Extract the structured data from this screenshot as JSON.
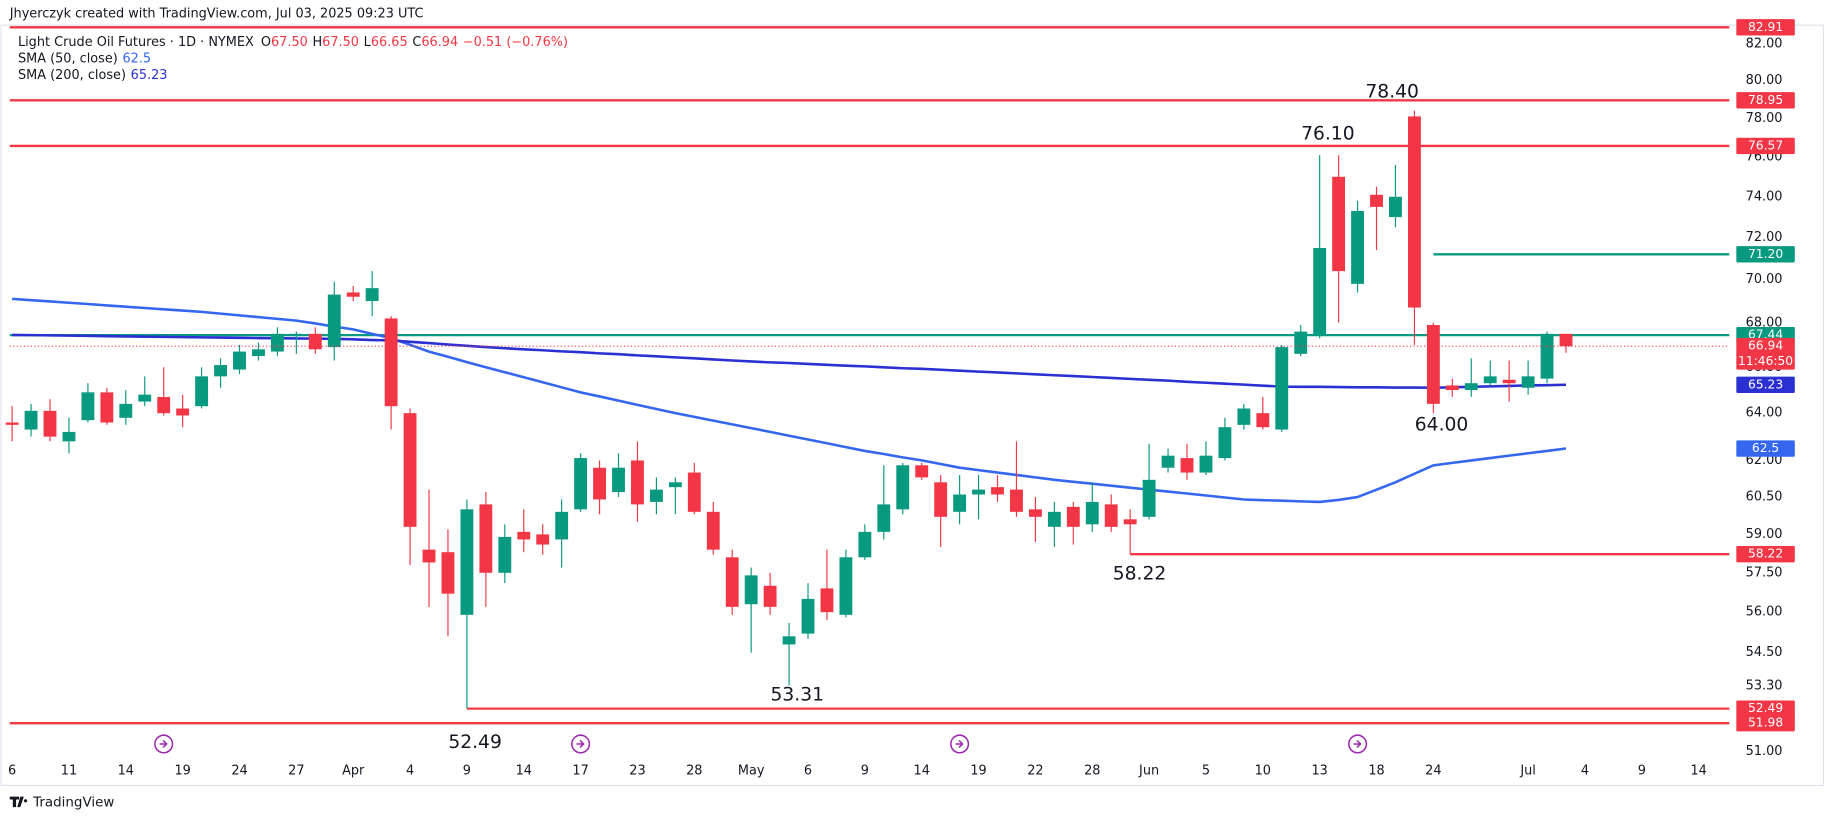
{
  "chart_data": {
    "type": "candlestick",
    "credit": "Jhyerczyk created with TradingView.com, Jul 03, 2025 09:23 UTC",
    "title": "Light Crude Oil Futures · 1D · NYMEX",
    "quote": [
      [
        "O",
        "67.50"
      ],
      [
        "H",
        "67.50"
      ],
      [
        "L",
        "66.65"
      ],
      [
        "C",
        "66.94"
      ]
    ],
    "change": "−0.51 (−0.76%)",
    "branding": "TradingView",
    "countdown": "11:46:50",
    "log_scale": true,
    "grid": false,
    "up_color": "#089981",
    "down_color": "#f23645",
    "ylim": [
      50.7,
      83.0
    ],
    "yticks": [
      {
        "value": 82,
        "label": "82.00"
      },
      {
        "value": 80,
        "label": "80.00"
      },
      {
        "value": 78,
        "label": "78.00"
      },
      {
        "value": 76,
        "label": "76.00"
      },
      {
        "value": 74,
        "label": "74.00"
      },
      {
        "value": 72,
        "label": "72.00"
      },
      {
        "value": 70,
        "label": "70.00"
      },
      {
        "value": 68,
        "label": "68.00"
      },
      {
        "value": 66,
        "label": "66.00"
      },
      {
        "value": 64,
        "label": "64.00"
      },
      {
        "value": 62,
        "label": "62.00"
      },
      {
        "value": 60.5,
        "label": "60.50"
      },
      {
        "value": 59,
        "label": "59.00"
      },
      {
        "value": 57.5,
        "label": "57.50"
      },
      {
        "value": 56,
        "label": "56.00"
      },
      {
        "value": 54.5,
        "label": "54.50"
      },
      {
        "value": 53.3,
        "label": "53.30"
      },
      {
        "value": 51,
        "label": "51.00"
      }
    ],
    "categories": [
      "6",
      null,
      null,
      "11",
      null,
      null,
      "14",
      null,
      null,
      "19",
      null,
      null,
      "24",
      null,
      null,
      "27",
      null,
      null,
      "Apr",
      null,
      null,
      "4",
      null,
      null,
      "9",
      null,
      null,
      "14",
      null,
      null,
      "17",
      null,
      null,
      "23",
      null,
      null,
      "28",
      null,
      null,
      "May",
      null,
      null,
      "6",
      null,
      null,
      "9",
      null,
      null,
      "14",
      null,
      null,
      "19",
      null,
      null,
      "22",
      null,
      null,
      "28",
      null,
      null,
      "Jun",
      null,
      null,
      "5",
      null,
      null,
      "10",
      null,
      null,
      "13",
      null,
      null,
      "18",
      null,
      null,
      "24",
      null,
      null,
      null,
      null,
      "Jul",
      null,
      null,
      "4",
      null,
      null,
      "9",
      null,
      null,
      "14"
    ],
    "open": [
      63.6,
      63.3,
      64.1,
      62.8,
      63.7,
      64.9,
      63.8,
      64.5,
      64.7,
      64.2,
      64.3,
      65.6,
      65.9,
      66.5,
      66.7,
      67.4,
      67.5,
      66.9,
      69.4,
      69.0,
      68.2,
      64.0,
      58.4,
      58.3,
      55.9,
      60.2,
      57.5,
      59.1,
      59.0,
      58.8,
      60.0,
      61.7,
      60.7,
      62.0,
      60.3,
      60.9,
      61.5,
      59.9,
      58.1,
      56.3,
      57.0,
      54.8,
      55.2,
      56.9,
      55.9,
      58.1,
      59.1,
      60.0,
      61.8,
      61.1,
      59.9,
      60.6,
      60.9,
      60.8,
      60.0,
      59.3,
      60.1,
      59.4,
      60.2,
      59.6,
      59.7,
      61.7,
      62.1,
      61.5,
      62.1,
      63.5,
      64.0,
      63.3,
      66.6,
      67.4,
      75.0,
      69.8,
      74.1,
      73.0,
      78.1,
      67.9,
      65.2,
      65.0,
      65.3,
      65.45,
      65.1,
      65.5,
      67.5,
      null,
      null,
      null,
      null,
      null,
      null,
      null
    ],
    "high": [
      64.3,
      64.4,
      64.6,
      63.8,
      65.3,
      65.1,
      65.0,
      65.6,
      66.0,
      64.8,
      66.0,
      66.4,
      67.0,
      67.1,
      67.8,
      67.6,
      67.8,
      69.9,
      69.7,
      70.4,
      68.3,
      64.2,
      60.8,
      59.2,
      60.4,
      60.7,
      59.4,
      60.0,
      59.4,
      60.4,
      62.3,
      62.0,
      62.3,
      62.8,
      61.3,
      61.3,
      61.9,
      60.3,
      58.4,
      57.7,
      57.5,
      55.6,
      57.1,
      58.4,
      58.4,
      59.4,
      61.8,
      61.9,
      61.9,
      61.4,
      61.4,
      61.4,
      61.4,
      62.8,
      60.5,
      60.3,
      60.3,
      61.1,
      60.6,
      60.0,
      62.7,
      62.5,
      62.7,
      62.8,
      63.8,
      64.4,
      64.7,
      67.0,
      67.9,
      76.1,
      76.1,
      73.8,
      74.5,
      75.6,
      78.4,
      68.0,
      65.5,
      66.4,
      66.3,
      66.3,
      66.3,
      67.6,
      67.5,
      null,
      null,
      null,
      null,
      null,
      null,
      null
    ],
    "low": [
      62.8,
      63.0,
      62.8,
      62.3,
      63.6,
      63.5,
      63.5,
      64.3,
      63.9,
      63.4,
      64.2,
      65.1,
      65.7,
      66.3,
      66.5,
      66.6,
      66.6,
      66.3,
      69.0,
      68.3,
      63.3,
      57.8,
      56.2,
      55.1,
      52.49,
      56.2,
      57.1,
      58.3,
      58.2,
      57.7,
      59.9,
      59.8,
      60.5,
      59.5,
      59.8,
      59.8,
      59.8,
      58.2,
      55.9,
      54.5,
      55.9,
      53.31,
      55.0,
      55.7,
      55.8,
      58.0,
      58.8,
      59.8,
      61.2,
      58.5,
      59.4,
      59.6,
      60.3,
      59.7,
      58.7,
      58.5,
      58.6,
      59.1,
      59.1,
      58.22,
      59.6,
      61.5,
      61.2,
      61.4,
      62.0,
      63.3,
      63.3,
      63.2,
      66.5,
      67.3,
      68.0,
      69.4,
      71.4,
      72.5,
      67.0,
      64.0,
      64.7,
      64.7,
      65.2,
      64.5,
      64.8,
      65.3,
      66.65,
      null,
      null,
      null,
      null,
      null,
      null,
      null
    ],
    "close": [
      63.5,
      64.1,
      63.0,
      63.2,
      64.9,
      63.6,
      64.4,
      64.8,
      64.0,
      63.9,
      65.6,
      66.1,
      66.7,
      66.8,
      67.5,
      67.5,
      66.8,
      69.3,
      69.2,
      69.6,
      64.3,
      59.3,
      57.9,
      56.7,
      60.0,
      57.5,
      58.9,
      58.8,
      58.6,
      59.9,
      62.1,
      60.4,
      61.7,
      60.2,
      60.8,
      61.1,
      59.9,
      58.4,
      56.2,
      57.4,
      56.2,
      55.1,
      56.5,
      56.0,
      58.1,
      59.1,
      60.2,
      61.8,
      61.3,
      59.7,
      60.6,
      60.8,
      60.6,
      59.9,
      59.7,
      59.9,
      59.3,
      60.3,
      59.3,
      59.4,
      61.2,
      62.2,
      61.5,
      62.2,
      63.4,
      64.2,
      63.4,
      66.9,
      67.6,
      71.5,
      70.4,
      73.3,
      73.5,
      74.0,
      68.7,
      64.4,
      65.0,
      65.3,
      65.6,
      65.3,
      65.6,
      67.5,
      66.94,
      null,
      null,
      null,
      null,
      null,
      null,
      null
    ],
    "series": [
      {
        "name": "SMA (50, close)",
        "color": "#3466f0",
        "values": [
          69.1,
          69.04,
          68.98,
          68.92,
          68.86,
          68.8,
          68.74,
          68.68,
          68.62,
          68.56,
          68.5,
          68.42,
          68.34,
          68.26,
          68.18,
          68.1,
          67.97,
          67.83,
          67.7,
          67.5,
          67.3,
          67.0,
          66.7,
          66.47,
          66.23,
          66.0,
          65.78,
          65.56,
          65.34,
          65.12,
          64.9,
          64.72,
          64.54,
          64.36,
          64.18,
          64.0,
          63.84,
          63.68,
          63.52,
          63.36,
          63.2,
          63.04,
          62.88,
          62.72,
          62.56,
          62.4,
          62.27,
          62.13,
          62.0,
          61.85,
          61.7,
          61.6,
          61.5,
          61.4,
          61.3,
          61.2,
          61.12,
          61.04,
          60.96,
          60.88,
          60.8,
          60.72,
          60.64,
          60.56,
          60.48,
          60.4,
          60.37,
          60.35,
          60.32,
          60.3,
          60.38,
          60.5,
          60.8,
          61.1,
          61.45,
          61.8,
          61.9,
          62.0,
          62.1,
          62.2,
          62.3,
          62.4,
          62.5,
          null,
          null,
          null,
          null,
          null,
          null,
          null
        ]
      },
      {
        "name": "SMA (200, close)",
        "color": "#2b30d2",
        "values": [
          67.45,
          67.44,
          67.43,
          67.42,
          67.41,
          67.39,
          67.38,
          67.37,
          67.36,
          67.35,
          67.34,
          67.33,
          67.32,
          67.31,
          67.3,
          67.29,
          67.28,
          67.27,
          67.25,
          67.22,
          67.2,
          67.14,
          67.08,
          67.02,
          66.96,
          66.9,
          66.85,
          66.8,
          66.76,
          66.71,
          66.67,
          66.62,
          66.58,
          66.53,
          66.49,
          66.44,
          66.4,
          66.35,
          66.3,
          66.26,
          66.22,
          66.19,
          66.15,
          66.11,
          66.07,
          66.04,
          66.0,
          65.96,
          65.93,
          65.89,
          65.85,
          65.81,
          65.77,
          65.73,
          65.69,
          65.65,
          65.61,
          65.57,
          65.53,
          65.49,
          65.45,
          65.41,
          65.36,
          65.32,
          65.28,
          65.24,
          65.19,
          65.15,
          65.14,
          65.14,
          65.13,
          65.12,
          65.12,
          65.11,
          65.11,
          65.1,
          65.12,
          65.14,
          65.16,
          65.18,
          65.2,
          65.21,
          65.23,
          null,
          null,
          null,
          null,
          null,
          null,
          null
        ]
      }
    ],
    "levels": [
      {
        "value": 82.91,
        "color": "#f23645"
      },
      {
        "value": 78.95,
        "color": "#f23645"
      },
      {
        "value": 76.57,
        "color": "#f23645"
      },
      {
        "value": 71.2,
        "label": "71.20",
        "color": "#089981"
      },
      {
        "value": 67.44,
        "color": "#089981"
      },
      {
        "value": 58.22,
        "color": "#f23645"
      },
      {
        "value": 52.49,
        "color": "#f23645"
      },
      {
        "value": 51.98,
        "color": "#f23645"
      }
    ],
    "annotations": [
      "78.40",
      "76.10",
      "64.00",
      "58.22",
      "53.31",
      "52.49"
    ]
  }
}
